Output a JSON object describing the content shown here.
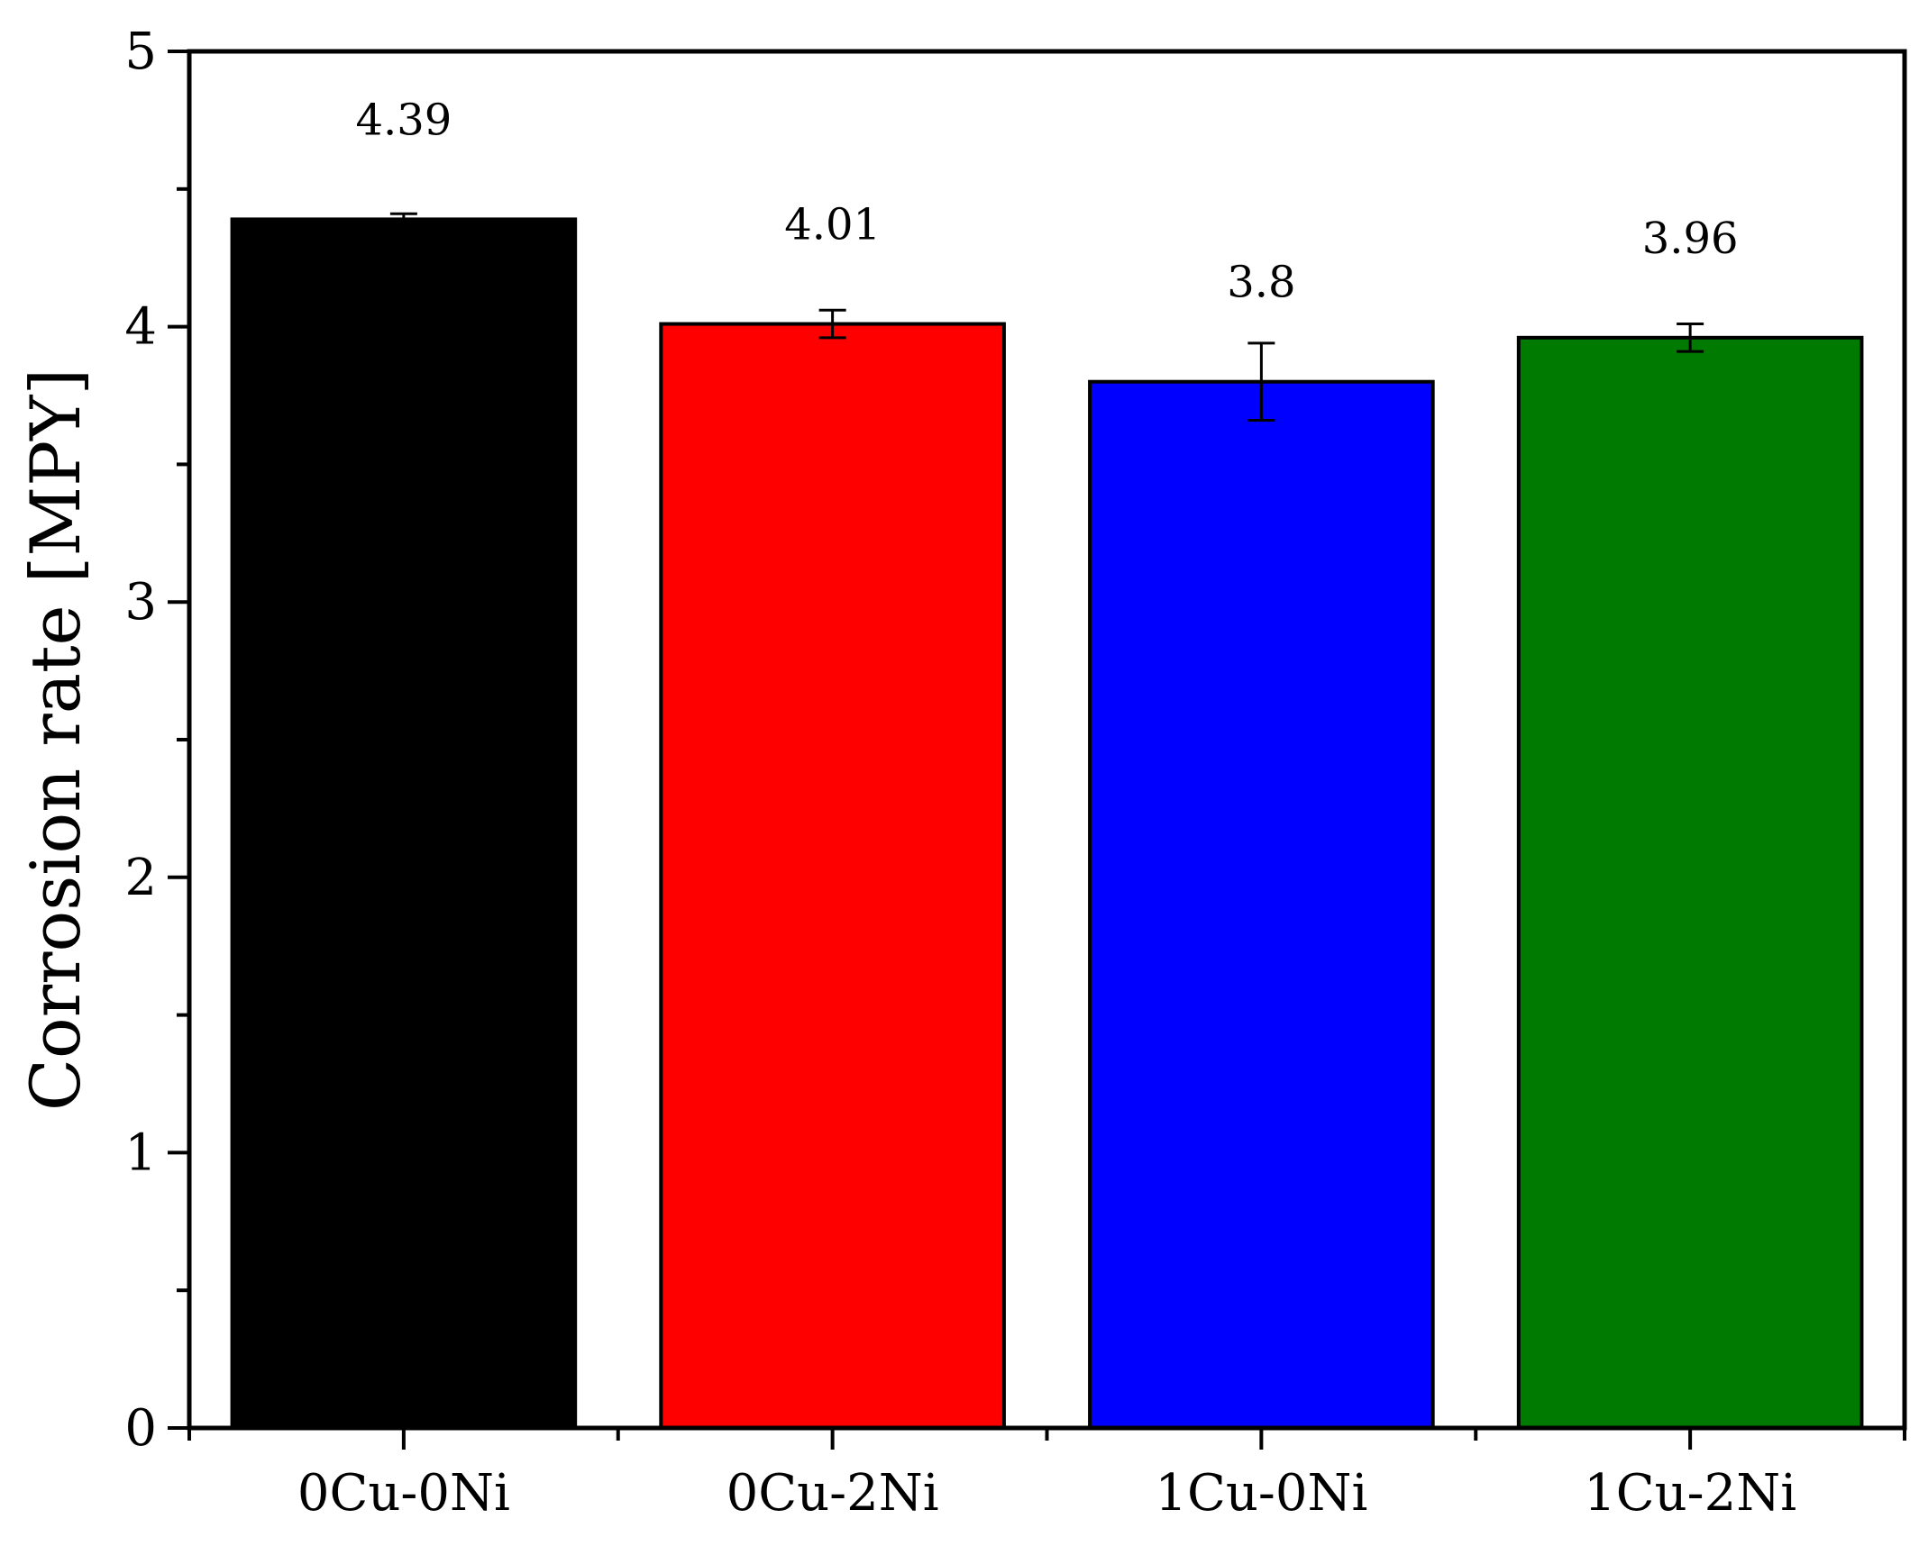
{
  "chart_data": {
    "type": "bar",
    "categories": [
      "0Cu-0Ni",
      "0Cu-2Ni",
      "1Cu-0Ni",
      "1Cu-2Ni"
    ],
    "values": [
      4.39,
      4.01,
      3.8,
      3.96
    ],
    "errors": [
      0.02,
      0.05,
      0.14,
      0.05
    ],
    "data_labels": [
      "4.39",
      "4.01",
      "3.8",
      "3.96"
    ],
    "colors": [
      "#000000",
      "#ff0000",
      "#0000ff",
      "#007a00"
    ],
    "title": "",
    "xlabel": "",
    "ylabel": "Corrosion rate [MPY]",
    "ylim": [
      0,
      5
    ],
    "yticks": [
      0,
      1,
      2,
      3,
      4,
      5
    ],
    "ytick_labels": [
      "0",
      "1",
      "2",
      "3",
      "4",
      "5"
    ],
    "grid": false,
    "legend": "none"
  }
}
